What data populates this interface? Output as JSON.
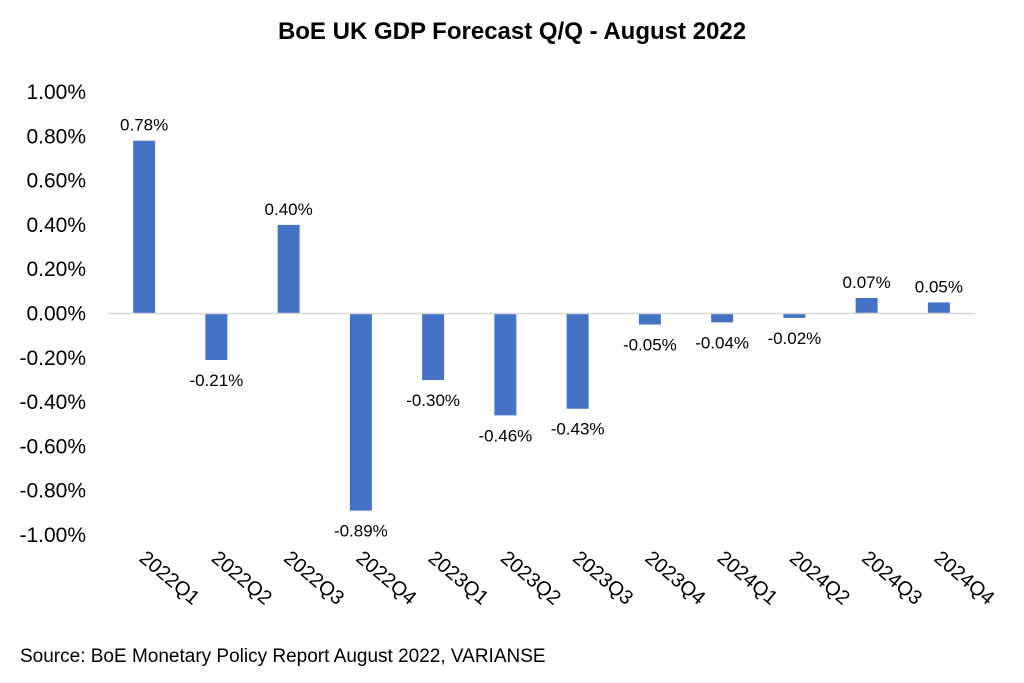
{
  "chart_data": {
    "type": "bar",
    "title": "BoE UK GDP Forecast Q/Q - August 2022",
    "xlabel": "",
    "ylabel": "",
    "ylim": [
      -1.0,
      1.0
    ],
    "y_ticks": [
      "1.00%",
      "0.80%",
      "0.60%",
      "0.40%",
      "0.20%",
      "0.00%",
      "-0.20%",
      "-0.40%",
      "-0.60%",
      "-0.80%",
      "-1.00%"
    ],
    "y_tick_values": [
      1.0,
      0.8,
      0.6,
      0.4,
      0.2,
      0.0,
      -0.2,
      -0.4,
      -0.6,
      -0.8,
      -1.0
    ],
    "categories": [
      "2022Q1",
      "2022Q2",
      "2022Q3",
      "2022Q4",
      "2023Q1",
      "2023Q2",
      "2023Q3",
      "2023Q4",
      "2024Q1",
      "2024Q2",
      "2024Q3",
      "2024Q4"
    ],
    "values": [
      0.78,
      -0.21,
      0.4,
      -0.89,
      -0.3,
      -0.46,
      -0.43,
      -0.05,
      -0.04,
      -0.02,
      0.07,
      0.05
    ],
    "data_labels": [
      "0.78%",
      "-0.21%",
      "0.40%",
      "-0.89%",
      "-0.30%",
      "-0.46%",
      "-0.43%",
      "-0.05%",
      "-0.04%",
      "-0.02%",
      "0.07%",
      "0.05%"
    ],
    "bar_color": "#4472C4",
    "grid": false,
    "legend": "none"
  },
  "source": "Source: BoE Monetary Policy Report August 2022, VARIANSE"
}
